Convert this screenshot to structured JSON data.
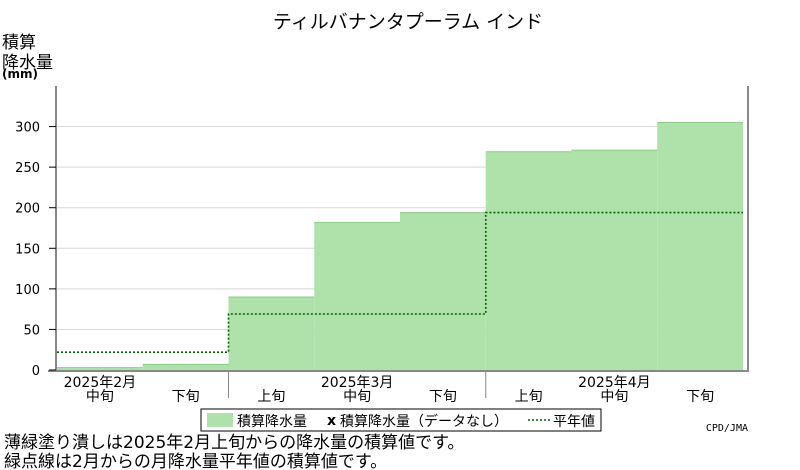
{
  "chart_data": {
    "type": "bar",
    "title": "ティルバナンタプーラム インド",
    "ylabel_lines": [
      "積算",
      "降水量"
    ],
    "yunit": "(mm)",
    "ylim": [
      0,
      350
    ],
    "yticks": [
      0,
      50,
      100,
      150,
      200,
      250,
      300
    ],
    "periods": [
      {
        "month": "2025年2月",
        "dekad": "中旬"
      },
      {
        "month": "2025年2月",
        "dekad": "下旬"
      },
      {
        "month": "2025年3月",
        "dekad": "上旬"
      },
      {
        "month": "2025年3月",
        "dekad": "中旬"
      },
      {
        "month": "2025年3月",
        "dekad": "下旬"
      },
      {
        "month": "2025年4月",
        "dekad": "上旬"
      },
      {
        "month": "2025年4月",
        "dekad": "中旬"
      },
      {
        "month": "2025年4月",
        "dekad": "下旬"
      }
    ],
    "dekad_labels": [
      "中旬",
      "下旬",
      "上旬",
      "中旬",
      "下旬",
      "上旬",
      "中旬",
      "下旬"
    ],
    "month_labels": [
      "2025年2月",
      "2025年3月",
      "2025年4月"
    ],
    "series": [
      {
        "name": "積算降水量",
        "values": [
          3,
          7,
          90,
          182,
          194,
          269,
          271,
          305
        ]
      },
      {
        "name": "平年値",
        "values": [
          22,
          22,
          69,
          69,
          69,
          194,
          194,
          194
        ]
      }
    ],
    "colors": {
      "accumulated": "#aee2aa",
      "accumulated_edge": "#8ecb8a",
      "normal": "#006400",
      "axis": "#888888",
      "grid": "#d8d8d8"
    },
    "legend": {
      "items": [
        "積算降水量",
        "積算降水量（データなし）",
        "平年値"
      ],
      "marker_missing": "x",
      "placement": "bottom"
    },
    "credit": "CPD/JMA",
    "notes": [
      "薄緑塗り潰しは2025年2月上旬からの降水量の積算値です。",
      "緑点線は2月からの月降水量平年値の積算値です。"
    ]
  }
}
